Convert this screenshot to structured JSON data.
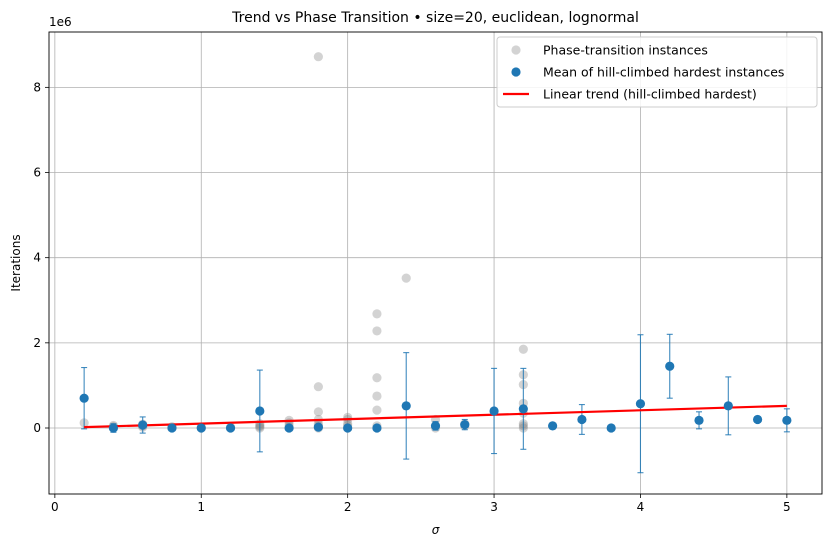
{
  "chart_data": {
    "type": "scatter",
    "title": "Trend vs Phase Transition  •  size=20, euclidean, lognormal",
    "xlabel": "σ",
    "ylabel": "Iterations",
    "y_offset_label": "1e6",
    "xlim": [
      -0.04,
      5.24
    ],
    "ylim": [
      -1.55,
      9.3
    ],
    "x_ticks": [
      0,
      1,
      2,
      3,
      4,
      5
    ],
    "x_tick_labels": [
      "0",
      "1",
      "2",
      "3",
      "4",
      "5"
    ],
    "y_ticks": [
      0,
      2,
      4,
      6,
      8
    ],
    "y_tick_labels": [
      "0",
      "2",
      "4",
      "6",
      "8"
    ],
    "grid": true,
    "legend_position": "top-right",
    "series": [
      {
        "name": "Phase-transition instances",
        "kind": "scatter",
        "color": "#808080",
        "points": [
          [
            0.2,
            0.12
          ],
          [
            0.4,
            0.03
          ],
          [
            0.4,
            0.06
          ],
          [
            0.6,
            0.02
          ],
          [
            0.6,
            0.05
          ],
          [
            0.6,
            0.09
          ],
          [
            0.8,
            0.01
          ],
          [
            0.8,
            0.03
          ],
          [
            1.0,
            0.0
          ],
          [
            1.0,
            0.02
          ],
          [
            1.2,
            0.0
          ],
          [
            1.2,
            0.02
          ],
          [
            1.4,
            0.0
          ],
          [
            1.4,
            0.03
          ],
          [
            1.4,
            0.06
          ],
          [
            1.4,
            0.1
          ],
          [
            1.6,
            0.0
          ],
          [
            1.6,
            0.05
          ],
          [
            1.6,
            0.12
          ],
          [
            1.6,
            0.18
          ],
          [
            1.8,
            0.0
          ],
          [
            1.8,
            0.05
          ],
          [
            1.8,
            0.1
          ],
          [
            1.8,
            0.2
          ],
          [
            1.8,
            0.38
          ],
          [
            1.8,
            0.97
          ],
          [
            1.8,
            8.72
          ],
          [
            2.0,
            0.0
          ],
          [
            2.0,
            0.05
          ],
          [
            2.0,
            0.1
          ],
          [
            2.0,
            0.2
          ],
          [
            2.0,
            0.25
          ],
          [
            2.2,
            0.0
          ],
          [
            2.2,
            0.05
          ],
          [
            2.2,
            0.42
          ],
          [
            2.2,
            0.75
          ],
          [
            2.2,
            1.18
          ],
          [
            2.2,
            2.28
          ],
          [
            2.2,
            2.68
          ],
          [
            2.4,
            3.52
          ],
          [
            2.6,
            0.0
          ],
          [
            2.6,
            0.05
          ],
          [
            2.6,
            0.2
          ],
          [
            2.8,
            0.05
          ],
          [
            2.8,
            0.1
          ],
          [
            3.2,
            0.0
          ],
          [
            3.2,
            0.05
          ],
          [
            3.2,
            0.1
          ],
          [
            3.2,
            0.35
          ],
          [
            3.2,
            0.58
          ],
          [
            3.2,
            1.02
          ],
          [
            3.2,
            1.25
          ],
          [
            3.2,
            1.85
          ]
        ]
      },
      {
        "name": "Mean of hill-climbed hardest instances",
        "kind": "errorbar",
        "color": "#1f77b4",
        "points": [
          {
            "x": 0.2,
            "y": 0.7,
            "err": 0.72
          },
          {
            "x": 0.4,
            "y": 0.0,
            "err": 0.1
          },
          {
            "x": 0.6,
            "y": 0.07,
            "err": 0.19
          },
          {
            "x": 0.8,
            "y": 0.0,
            "err": 0.03
          },
          {
            "x": 1.0,
            "y": 0.0,
            "err": 0.03
          },
          {
            "x": 1.2,
            "y": 0.0,
            "err": 0.03
          },
          {
            "x": 1.4,
            "y": 0.4,
            "err": 0.96
          },
          {
            "x": 1.6,
            "y": 0.0,
            "err": 0.05
          },
          {
            "x": 1.8,
            "y": 0.02,
            "err": 0.05
          },
          {
            "x": 2.0,
            "y": 0.0,
            "err": 0.05
          },
          {
            "x": 2.2,
            "y": 0.0,
            "err": 0.05
          },
          {
            "x": 2.4,
            "y": 0.52,
            "err": 1.25
          },
          {
            "x": 2.6,
            "y": 0.05,
            "err": 0.1
          },
          {
            "x": 2.8,
            "y": 0.08,
            "err": 0.12
          },
          {
            "x": 3.0,
            "y": 0.4,
            "err": 1.0
          },
          {
            "x": 3.2,
            "y": 0.45,
            "err": 0.95
          },
          {
            "x": 3.4,
            "y": 0.05,
            "err": 0.0
          },
          {
            "x": 3.6,
            "y": 0.2,
            "err": 0.35
          },
          {
            "x": 3.8,
            "y": 0.0,
            "err": 0.0
          },
          {
            "x": 4.0,
            "y": 0.57,
            "err": 1.62
          },
          {
            "x": 4.2,
            "y": 1.45,
            "err": 0.75
          },
          {
            "x": 4.4,
            "y": 0.18,
            "err": 0.2
          },
          {
            "x": 4.6,
            "y": 0.52,
            "err": 0.68
          },
          {
            "x": 4.8,
            "y": 0.2,
            "err": 0.0
          },
          {
            "x": 5.0,
            "y": 0.18,
            "err": 0.27
          }
        ]
      },
      {
        "name": "Linear trend (hill-climbed hardest)",
        "kind": "line",
        "color": "#ff0000",
        "x": [
          0.2,
          5.0
        ],
        "y": [
          0.02,
          0.52
        ]
      }
    ]
  }
}
